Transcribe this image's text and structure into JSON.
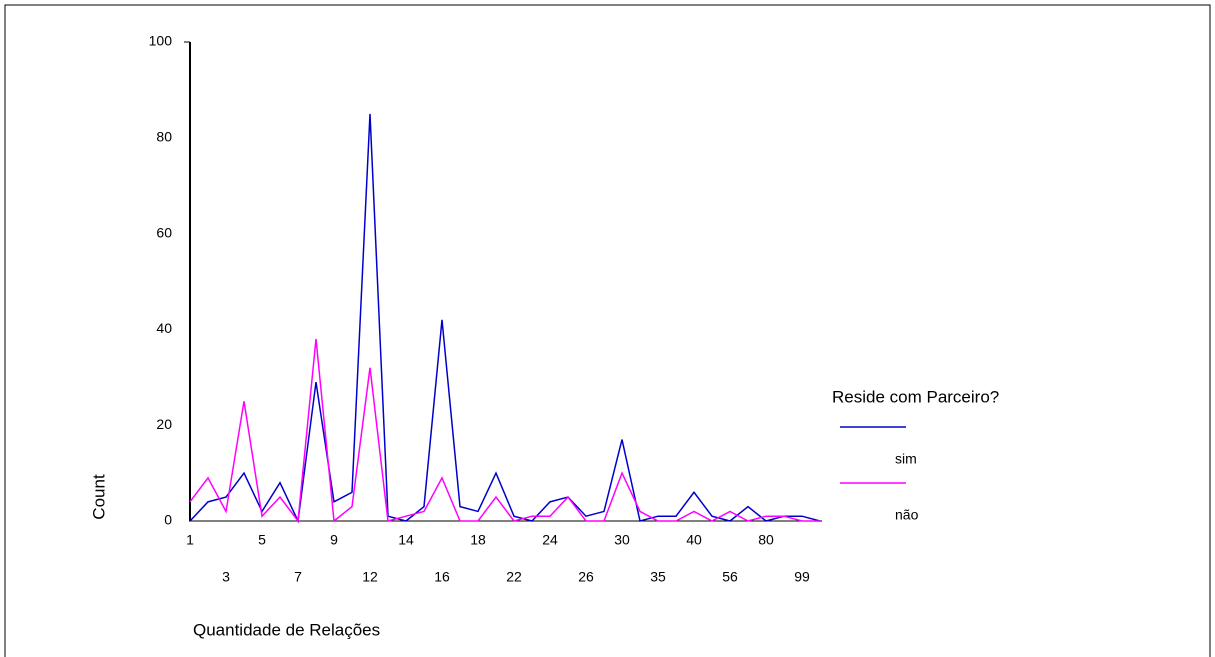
{
  "chart_data": {
    "type": "line",
    "x_label": "Quantidade de Relações",
    "y_label": "Count",
    "legend_title": "Reside com Parceiro?",
    "legend_position": "right",
    "categories": [
      "1",
      null,
      "3",
      null,
      "5",
      null,
      "7",
      null,
      "9",
      null,
      "12",
      null,
      "14",
      null,
      "16",
      null,
      "18",
      null,
      "22",
      null,
      "24",
      null,
      "26",
      null,
      "30",
      null,
      "35",
      null,
      "40",
      null,
      "56",
      null,
      "80",
      null,
      "99",
      null
    ],
    "series": [
      {
        "name": "sim",
        "color": "#0000cc",
        "values": [
          0,
          4,
          5,
          10,
          2,
          8,
          0,
          29,
          4,
          6,
          85,
          1,
          0,
          3,
          42,
          3,
          2,
          10,
          1,
          0,
          4,
          5,
          1,
          2,
          17,
          0,
          1,
          1,
          6,
          1,
          0,
          3,
          0,
          1,
          1,
          0
        ]
      },
      {
        "name": "não",
        "color": "#ff00ff",
        "values": [
          4,
          9,
          2,
          25,
          1,
          5,
          0,
          38,
          0,
          3,
          32,
          0,
          1,
          2,
          9,
          0,
          0,
          5,
          0,
          1,
          1,
          5,
          0,
          0,
          10,
          2,
          0,
          0,
          2,
          0,
          2,
          0,
          1,
          1,
          0,
          0
        ]
      }
    ],
    "ylim": [
      0,
      100
    ],
    "yticks": [
      0,
      20,
      40,
      60,
      80,
      100
    ],
    "grid": false
  }
}
